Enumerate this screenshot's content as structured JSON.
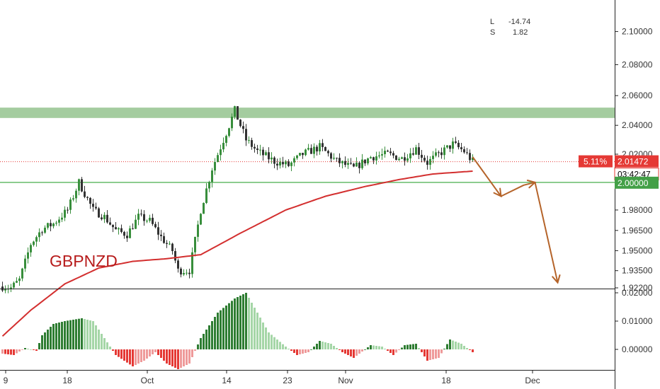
{
  "chart_data": {
    "type": "candlestick",
    "symbol": "GBPNZD",
    "colors": {
      "bull": "#388e3c",
      "bear": "#333333",
      "ma": "#d32f2f",
      "zone": "#81b97a",
      "support": "#66bb6a",
      "projection": "#b5642a",
      "price_tag": "#e53935",
      "support_tag": "#43a047"
    },
    "price_axis": {
      "ticks": [
        "2.10000",
        "2.08000",
        "2.06000",
        "2.04000",
        "2.02000",
        "1.98000",
        "1.96500",
        "1.95000",
        "1.93500",
        "1.92200"
      ],
      "range": [
        1.922,
        2.115
      ]
    },
    "osc_axis": {
      "ticks": [
        "0.02000",
        "0.01000",
        "0.00000"
      ],
      "range": [
        -0.007,
        0.021
      ]
    },
    "x_ticks": [
      "9",
      "18",
      "Oct",
      "14",
      "23",
      "Nov",
      "18",
      "Dec"
    ],
    "legend": {
      "l_label": "L",
      "l_value": "-14.74",
      "s_label": "S",
      "s_value": "1.82"
    },
    "current_price": {
      "pct": "5.11%",
      "price": "2.01472",
      "countdown": "03:42:47",
      "value": 2.01472
    },
    "support": {
      "label": "2.00000",
      "value": 2.0
    },
    "resistance_zone": [
      2.045,
      2.052
    ],
    "projection_path": [
      [
        0,
        2.018
      ],
      [
        5,
        1.99
      ],
      [
        9,
        1.998
      ],
      [
        11,
        2.0
      ],
      [
        15,
        1.926
      ]
    ],
    "anchors": [
      [
        0,
        1.923
      ],
      [
        3,
        1.922
      ],
      [
        6,
        1.928
      ],
      [
        10,
        1.955
      ],
      [
        14,
        1.966
      ],
      [
        18,
        1.97
      ],
      [
        23,
        1.98
      ],
      [
        27,
        2.0
      ],
      [
        32,
        1.98
      ],
      [
        36,
        1.975
      ],
      [
        40,
        1.965
      ],
      [
        44,
        1.962
      ],
      [
        48,
        1.975
      ],
      [
        52,
        1.972
      ],
      [
        56,
        1.96
      ],
      [
        60,
        1.95
      ],
      [
        62,
        1.935
      ],
      [
        66,
        1.935
      ],
      [
        70,
        1.98
      ],
      [
        74,
        2.01
      ],
      [
        78,
        2.03
      ],
      [
        82,
        2.05
      ],
      [
        86,
        2.03
      ],
      [
        90,
        2.022
      ],
      [
        96,
        2.015
      ],
      [
        101,
        2.012
      ],
      [
        106,
        2.02
      ],
      [
        112,
        2.025
      ],
      [
        118,
        2.015
      ],
      [
        124,
        2.01
      ],
      [
        130,
        2.018
      ],
      [
        136,
        2.02
      ],
      [
        141,
        2.017
      ],
      [
        146,
        2.024
      ],
      [
        150,
        2.014
      ],
      [
        154,
        2.02
      ],
      [
        159,
        2.027
      ],
      [
        163,
        2.022
      ],
      [
        166,
        2.015
      ]
    ],
    "ma_points": [
      [
        0,
        1.885
      ],
      [
        10,
        1.905
      ],
      [
        22,
        1.925
      ],
      [
        34,
        1.937
      ],
      [
        46,
        1.942
      ],
      [
        58,
        1.944
      ],
      [
        70,
        1.947
      ],
      [
        84,
        1.963
      ],
      [
        100,
        1.98
      ],
      [
        114,
        1.99
      ],
      [
        128,
        1.997
      ],
      [
        140,
        2.002
      ],
      [
        152,
        2.006
      ],
      [
        166,
        2.008
      ]
    ],
    "osc_anchors": [
      [
        0,
        -0.0015
      ],
      [
        4,
        -0.002
      ],
      [
        8,
        0.0005
      ],
      [
        12,
        -0.0005
      ],
      [
        14,
        0.005
      ],
      [
        18,
        0.009
      ],
      [
        22,
        0.01
      ],
      [
        28,
        0.011
      ],
      [
        32,
        0.01
      ],
      [
        36,
        0.004
      ],
      [
        40,
        -0.002
      ],
      [
        46,
        -0.006
      ],
      [
        50,
        -0.004
      ],
      [
        54,
        -0.001
      ],
      [
        58,
        -0.005
      ],
      [
        62,
        -0.007
      ],
      [
        66,
        -0.005
      ],
      [
        70,
        0.004
      ],
      [
        76,
        0.013
      ],
      [
        82,
        0.018
      ],
      [
        86,
        0.02
      ],
      [
        90,
        0.013
      ],
      [
        94,
        0.006
      ],
      [
        100,
        0.001
      ],
      [
        104,
        -0.002
      ],
      [
        108,
        -0.001
      ],
      [
        112,
        0.003
      ],
      [
        116,
        0.002
      ],
      [
        120,
        -0.001
      ],
      [
        124,
        -0.003
      ],
      [
        130,
        0.0015
      ],
      [
        134,
        0.001
      ],
      [
        138,
        -0.002
      ],
      [
        142,
        0.0015
      ],
      [
        146,
        0.002
      ],
      [
        150,
        -0.004
      ],
      [
        154,
        -0.003
      ],
      [
        158,
        0.0035
      ],
      [
        162,
        0.002
      ],
      [
        166,
        -0.001
      ]
    ]
  }
}
